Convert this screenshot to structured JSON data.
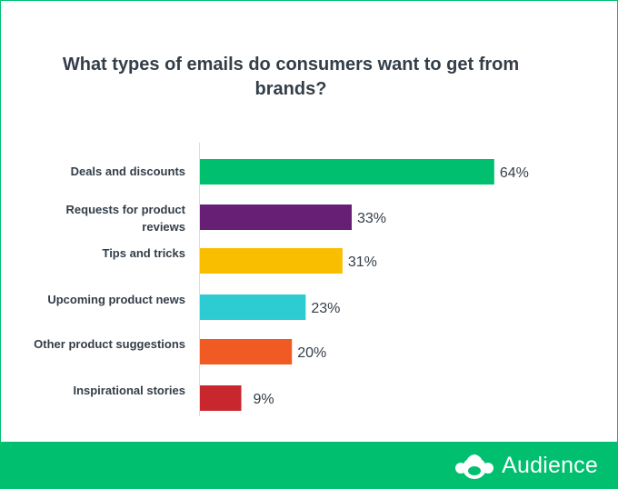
{
  "chart_data": {
    "type": "bar",
    "orientation": "horizontal",
    "title": "What types of emails do consumers want to get from brands?",
    "categories": [
      "Deals  and discounts",
      "Requests for product reviews",
      "Tips and tricks",
      "Upcoming product news",
      "Other product suggestions",
      "Inspirational stories"
    ],
    "values": [
      64,
      33,
      31,
      23,
      20,
      9
    ],
    "value_labels": [
      "64%",
      "33%",
      "31%",
      "23%",
      "20%",
      "9%"
    ],
    "colors": [
      "#00BF6F",
      "#671E75",
      "#F9BE00",
      "#2DCCD3",
      "#F05B24",
      "#C8282D"
    ],
    "unit": "%",
    "xlim": [
      0,
      100
    ],
    "grid": false,
    "legend": "none"
  },
  "brand": {
    "name": "Audience",
    "logo_icon": "surveymonkey-logo-icon",
    "accent_color": "#00BF6F"
  }
}
